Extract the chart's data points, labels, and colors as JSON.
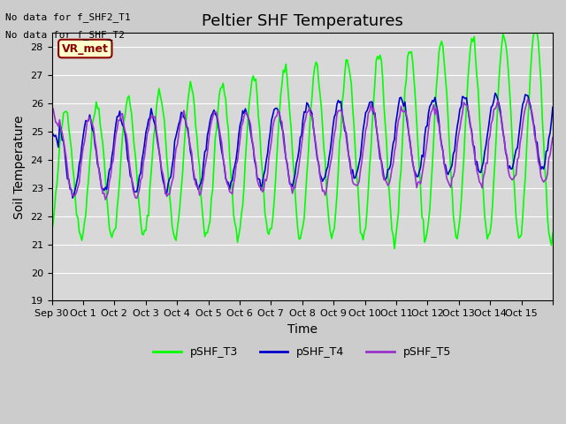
{
  "title": "Peltier SHF Temperatures",
  "xlabel": "Time",
  "ylabel": "Soil Temperature",
  "note1": "No data for f_SHF2_T1",
  "note2": "No data for f_SHF_T2",
  "annotation": "VR_met",
  "ylim": [
    19.0,
    28.5
  ],
  "yticks": [
    19.0,
    20.0,
    21.0,
    22.0,
    23.0,
    24.0,
    25.0,
    26.0,
    27.0,
    28.0
  ],
  "xtick_positions": [
    0,
    1,
    2,
    3,
    4,
    5,
    6,
    7,
    8,
    9,
    10,
    11,
    12,
    13,
    14,
    15,
    16
  ],
  "xtick_labels": [
    "Sep 30",
    "Oct 1",
    "Oct 2",
    "Oct 3",
    "Oct 4",
    "Oct 5",
    "Oct 6",
    "Oct 7",
    "Oct 8",
    "Oct 9",
    "Oct 10",
    "Oct 11",
    "Oct 12",
    "Oct 13",
    "Oct 14",
    "Oct 15",
    ""
  ],
  "color_T3": "#00ff00",
  "color_T4": "#0000cc",
  "color_T5": "#9933cc",
  "legend_labels": [
    "pSHF_T3",
    "pSHF_T4",
    "pSHF_T5"
  ],
  "title_fontsize": 13,
  "axis_fontsize": 10,
  "tick_fontsize": 8
}
